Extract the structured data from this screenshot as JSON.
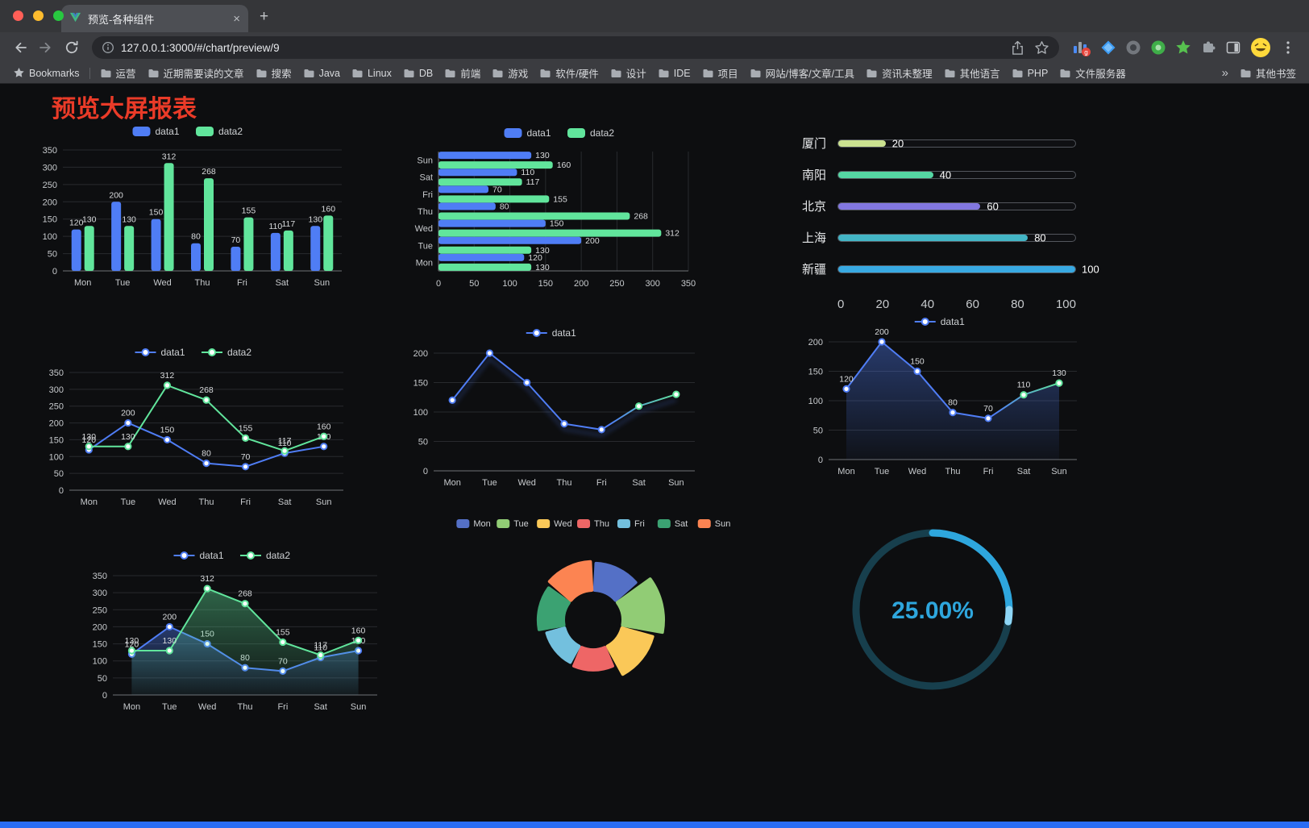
{
  "browser": {
    "tab": {
      "title": "预览-各种组件",
      "close_glyph": "×",
      "new_tab_glyph": "+"
    },
    "toolbar": {
      "url": "127.0.0.1:3000/#/chart/preview/9",
      "extension_badge": "g"
    },
    "bookmarks_bar": {
      "bookmarks_label": "Bookmarks",
      "folders": [
        "运营",
        "近期需要读的文章",
        "搜索",
        "Java",
        "Linux",
        "DB",
        "前端",
        "游戏",
        "软件/硬件",
        "设计",
        "IDE",
        "项目",
        "网站/博客/文章/工具",
        "资讯未整理",
        "其他语言",
        "PHP",
        "文件服务器"
      ],
      "overflow_glyph": "»",
      "other_bookmarks": "其他书签"
    }
  },
  "page": {
    "title": "预览大屏报表",
    "title_color": "#ea3b28",
    "background": "#0d0e10",
    "bottom_bar_color": "#2a6df4"
  },
  "chart_data": [
    {
      "id": "bar-vertical",
      "type": "bar",
      "orientation": "vertical",
      "categories": [
        "Mon",
        "Tue",
        "Wed",
        "Thu",
        "Fri",
        "Sat",
        "Sun"
      ],
      "series": [
        {
          "name": "data1",
          "color": "#4f7df5",
          "values": [
            120,
            200,
            150,
            80,
            70,
            110,
            130
          ]
        },
        {
          "name": "data2",
          "color": "#61e59c",
          "values": [
            130,
            130,
            312,
            268,
            155,
            117,
            160
          ]
        }
      ],
      "ylim": [
        0,
        350
      ],
      "ystep": 50,
      "value_labels": true,
      "legend_position": "top",
      "grid": true
    },
    {
      "id": "bar-horizontal",
      "type": "bar",
      "orientation": "horizontal",
      "categories": [
        "Mon",
        "Tue",
        "Wed",
        "Thu",
        "Fri",
        "Sat",
        "Sun"
      ],
      "series": [
        {
          "name": "data1",
          "color": "#4f7df5",
          "values": [
            120,
            200,
            150,
            80,
            70,
            110,
            130
          ]
        },
        {
          "name": "data2",
          "color": "#61e59c",
          "values": [
            130,
            130,
            312,
            268,
            155,
            117,
            160
          ]
        }
      ],
      "xlim": [
        0,
        350
      ],
      "xstep": 50,
      "value_labels": true,
      "legend_position": "top",
      "grid": true
    },
    {
      "id": "progress-bars",
      "type": "bar",
      "subtype": "progress-list",
      "rows": [
        {
          "label": "厦门",
          "value": 20,
          "color": "#cbe290"
        },
        {
          "label": "南阳",
          "value": 40,
          "color": "#55d7a4"
        },
        {
          "label": "北京",
          "value": 60,
          "color": "#8277e0"
        },
        {
          "label": "上海",
          "value": 80,
          "color": "#43b5c6"
        },
        {
          "label": "新疆",
          "value": 100,
          "color": "#38a9e2"
        }
      ],
      "xlim": [
        0,
        100
      ],
      "axis_ticks": [
        0,
        20,
        40,
        60,
        80,
        100
      ]
    },
    {
      "id": "line-dual",
      "type": "line",
      "categories": [
        "Mon",
        "Tue",
        "Wed",
        "Thu",
        "Fri",
        "Sat",
        "Sun"
      ],
      "series": [
        {
          "name": "data1",
          "color": "#4f7df5",
          "values": [
            120,
            200,
            150,
            80,
            70,
            110,
            130
          ],
          "area": false
        },
        {
          "name": "data2",
          "color": "#61e59c",
          "values": [
            130,
            130,
            312,
            268,
            155,
            117,
            160
          ],
          "area": false
        }
      ],
      "ylim": [
        0,
        350
      ],
      "ystep": 50,
      "value_labels": true,
      "legend_position": "top",
      "grid": true
    },
    {
      "id": "line-gradient",
      "type": "line",
      "categories": [
        "Mon",
        "Tue",
        "Wed",
        "Thu",
        "Fri",
        "Sat",
        "Sun"
      ],
      "series": [
        {
          "name": "data1",
          "color": [
            "#4f7df5",
            "#61e59c"
          ],
          "values": [
            120,
            200,
            150,
            80,
            70,
            110,
            130
          ],
          "area": false
        }
      ],
      "ylim": [
        0,
        200
      ],
      "ystep": 50,
      "value_labels": false,
      "legend_position": "top",
      "grid": true
    },
    {
      "id": "line-area",
      "type": "line",
      "categories": [
        "Mon",
        "Tue",
        "Wed",
        "Thu",
        "Fri",
        "Sat",
        "Sun"
      ],
      "series": [
        {
          "name": "data1",
          "color": [
            "#4f7df5",
            "#61e59c"
          ],
          "values": [
            120,
            200,
            150,
            80,
            70,
            110,
            130
          ],
          "area": true
        }
      ],
      "ylim": [
        0,
        200
      ],
      "ystep": 50,
      "value_labels": true,
      "legend_position": "top",
      "grid": true
    },
    {
      "id": "line-dual-area",
      "type": "line",
      "categories": [
        "Mon",
        "Tue",
        "Wed",
        "Thu",
        "Fri",
        "Sat",
        "Sun"
      ],
      "series": [
        {
          "name": "data1",
          "color": "#4f7df5",
          "values": [
            120,
            200,
            150,
            80,
            70,
            110,
            130
          ],
          "area": true
        },
        {
          "name": "data2",
          "color": "#61e59c",
          "values": [
            130,
            130,
            312,
            268,
            155,
            117,
            160
          ],
          "area": true
        }
      ],
      "ylim": [
        0,
        350
      ],
      "ystep": 50,
      "value_labels": true,
      "legend_position": "top",
      "grid": true
    },
    {
      "id": "rose-pie",
      "type": "pie",
      "subtype": "rose-donut",
      "categories": [
        "Mon",
        "Tue",
        "Wed",
        "Thu",
        "Fri",
        "Sat",
        "Sun"
      ],
      "values": [
        120,
        200,
        150,
        80,
        70,
        110,
        130
      ],
      "colors": [
        "#5470c6",
        "#91cc75",
        "#fac858",
        "#ee6666",
        "#73c0de",
        "#3ba272",
        "#fc8452"
      ],
      "legend_position": "top"
    },
    {
      "id": "gauge-progress",
      "type": "gauge",
      "value": 25,
      "max": 100,
      "label": "25.00%",
      "color": "#2ea6dd",
      "track_color": "#173f4d",
      "end_color": "#8ed6f6"
    }
  ]
}
